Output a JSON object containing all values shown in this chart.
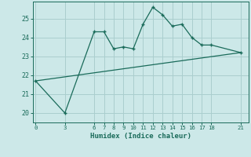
{
  "xlabel": "Humidex (Indice chaleur)",
  "line1_x": [
    0,
    3,
    6,
    7,
    8,
    9,
    10,
    11,
    12,
    13,
    14,
    15,
    16,
    17,
    18,
    21
  ],
  "line1_y": [
    21.7,
    20.0,
    24.3,
    24.3,
    23.4,
    23.5,
    23.4,
    24.7,
    25.6,
    25.2,
    24.6,
    24.7,
    24.0,
    23.6,
    23.6,
    23.2
  ],
  "line2_x": [
    0,
    21
  ],
  "line2_y": [
    21.7,
    23.2
  ],
  "color": "#1a6b5a",
  "bg_color": "#cce8e8",
  "grid_color": "#aacece",
  "ylim": [
    19.5,
    25.9
  ],
  "xlim": [
    -0.3,
    21.8
  ],
  "yticks": [
    20,
    21,
    22,
    23,
    24,
    25
  ],
  "xtick_positions": [
    0,
    3,
    6,
    7,
    8,
    9,
    10,
    11,
    12,
    13,
    14,
    15,
    16,
    17,
    18,
    21
  ],
  "xtick_labels": [
    "0",
    "3",
    "6",
    "7",
    "8",
    "9",
    "10",
    "11",
    "12",
    "13",
    "14",
    "15",
    "16",
    "17",
    "18",
    "21"
  ]
}
